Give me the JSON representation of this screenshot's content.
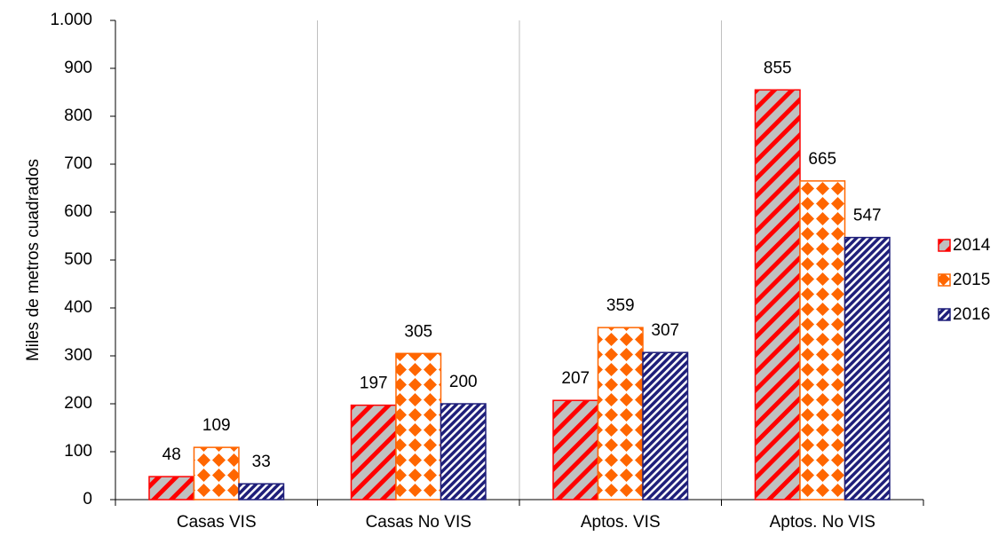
{
  "chart_data": {
    "type": "bar",
    "y_label": "Miles de metros cuadrados",
    "categories": [
      "Casas VIS",
      "Casas No VIS",
      "Aptos. VIS",
      "Aptos. No VIS"
    ],
    "series": [
      {
        "name": "2014",
        "color": "#ff0000",
        "values": [
          48,
          197,
          207,
          855
        ]
      },
      {
        "name": "2015",
        "color": "#ff6600",
        "values": [
          109,
          305,
          359,
          665
        ]
      },
      {
        "name": "2016",
        "color": "#1f1f7a",
        "values": [
          33,
          200,
          307,
          547
        ]
      }
    ],
    "ylim": [
      0,
      1000
    ],
    "yticks": [
      0,
      100,
      200,
      300,
      400,
      500,
      600,
      700,
      800,
      900,
      {
        "value": 1000,
        "label": "1.000"
      }
    ],
    "legend": "right"
  }
}
